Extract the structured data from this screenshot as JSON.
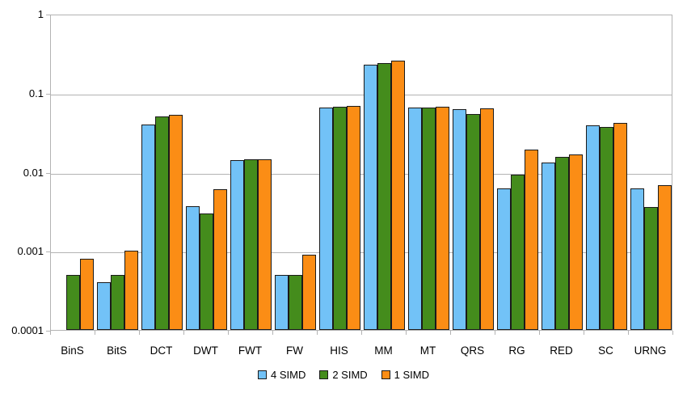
{
  "chart_data": {
    "type": "bar",
    "title": "",
    "xlabel": "",
    "ylabel": "",
    "y_scale": "log",
    "ylim": [
      0.0001,
      1
    ],
    "y_ticks": [
      "1",
      "0.1",
      "0.01",
      "0.001",
      "0.0001"
    ],
    "grid": true,
    "legend_position": "bottom",
    "categories": [
      "BinS",
      "BitS",
      "DCT",
      "DWT",
      "FWT",
      "FW",
      "HIS",
      "MM",
      "MT",
      "QRS",
      "RG",
      "RED",
      "SC",
      "URNG"
    ],
    "series": [
      {
        "name": "4 SIMD",
        "color": "#72C2F7",
        "values": [
          null,
          0.0004,
          0.04,
          0.0037,
          0.014,
          0.0005,
          0.065,
          0.225,
          0.065,
          0.062,
          0.0061,
          0.013,
          0.039,
          0.0061
        ]
      },
      {
        "name": "2 SIMD",
        "color": "#448C1C",
        "values": [
          0.0005,
          0.0005,
          0.05,
          0.003,
          0.0145,
          0.0005,
          0.067,
          0.235,
          0.065,
          0.054,
          0.0092,
          0.0155,
          0.037,
          0.0036
        ]
      },
      {
        "name": "1 SIMD",
        "color": "#FB8D15",
        "values": [
          0.0008,
          0.001,
          0.053,
          0.006,
          0.0145,
          0.0009,
          0.069,
          0.255,
          0.066,
          0.064,
          0.019,
          0.0165,
          0.042,
          0.0068
        ]
      }
    ],
    "colors": {
      "bar_border": "#1a1a1a",
      "grid": "#b3b3b3",
      "text": "#000000",
      "background": "#ffffff"
    }
  }
}
